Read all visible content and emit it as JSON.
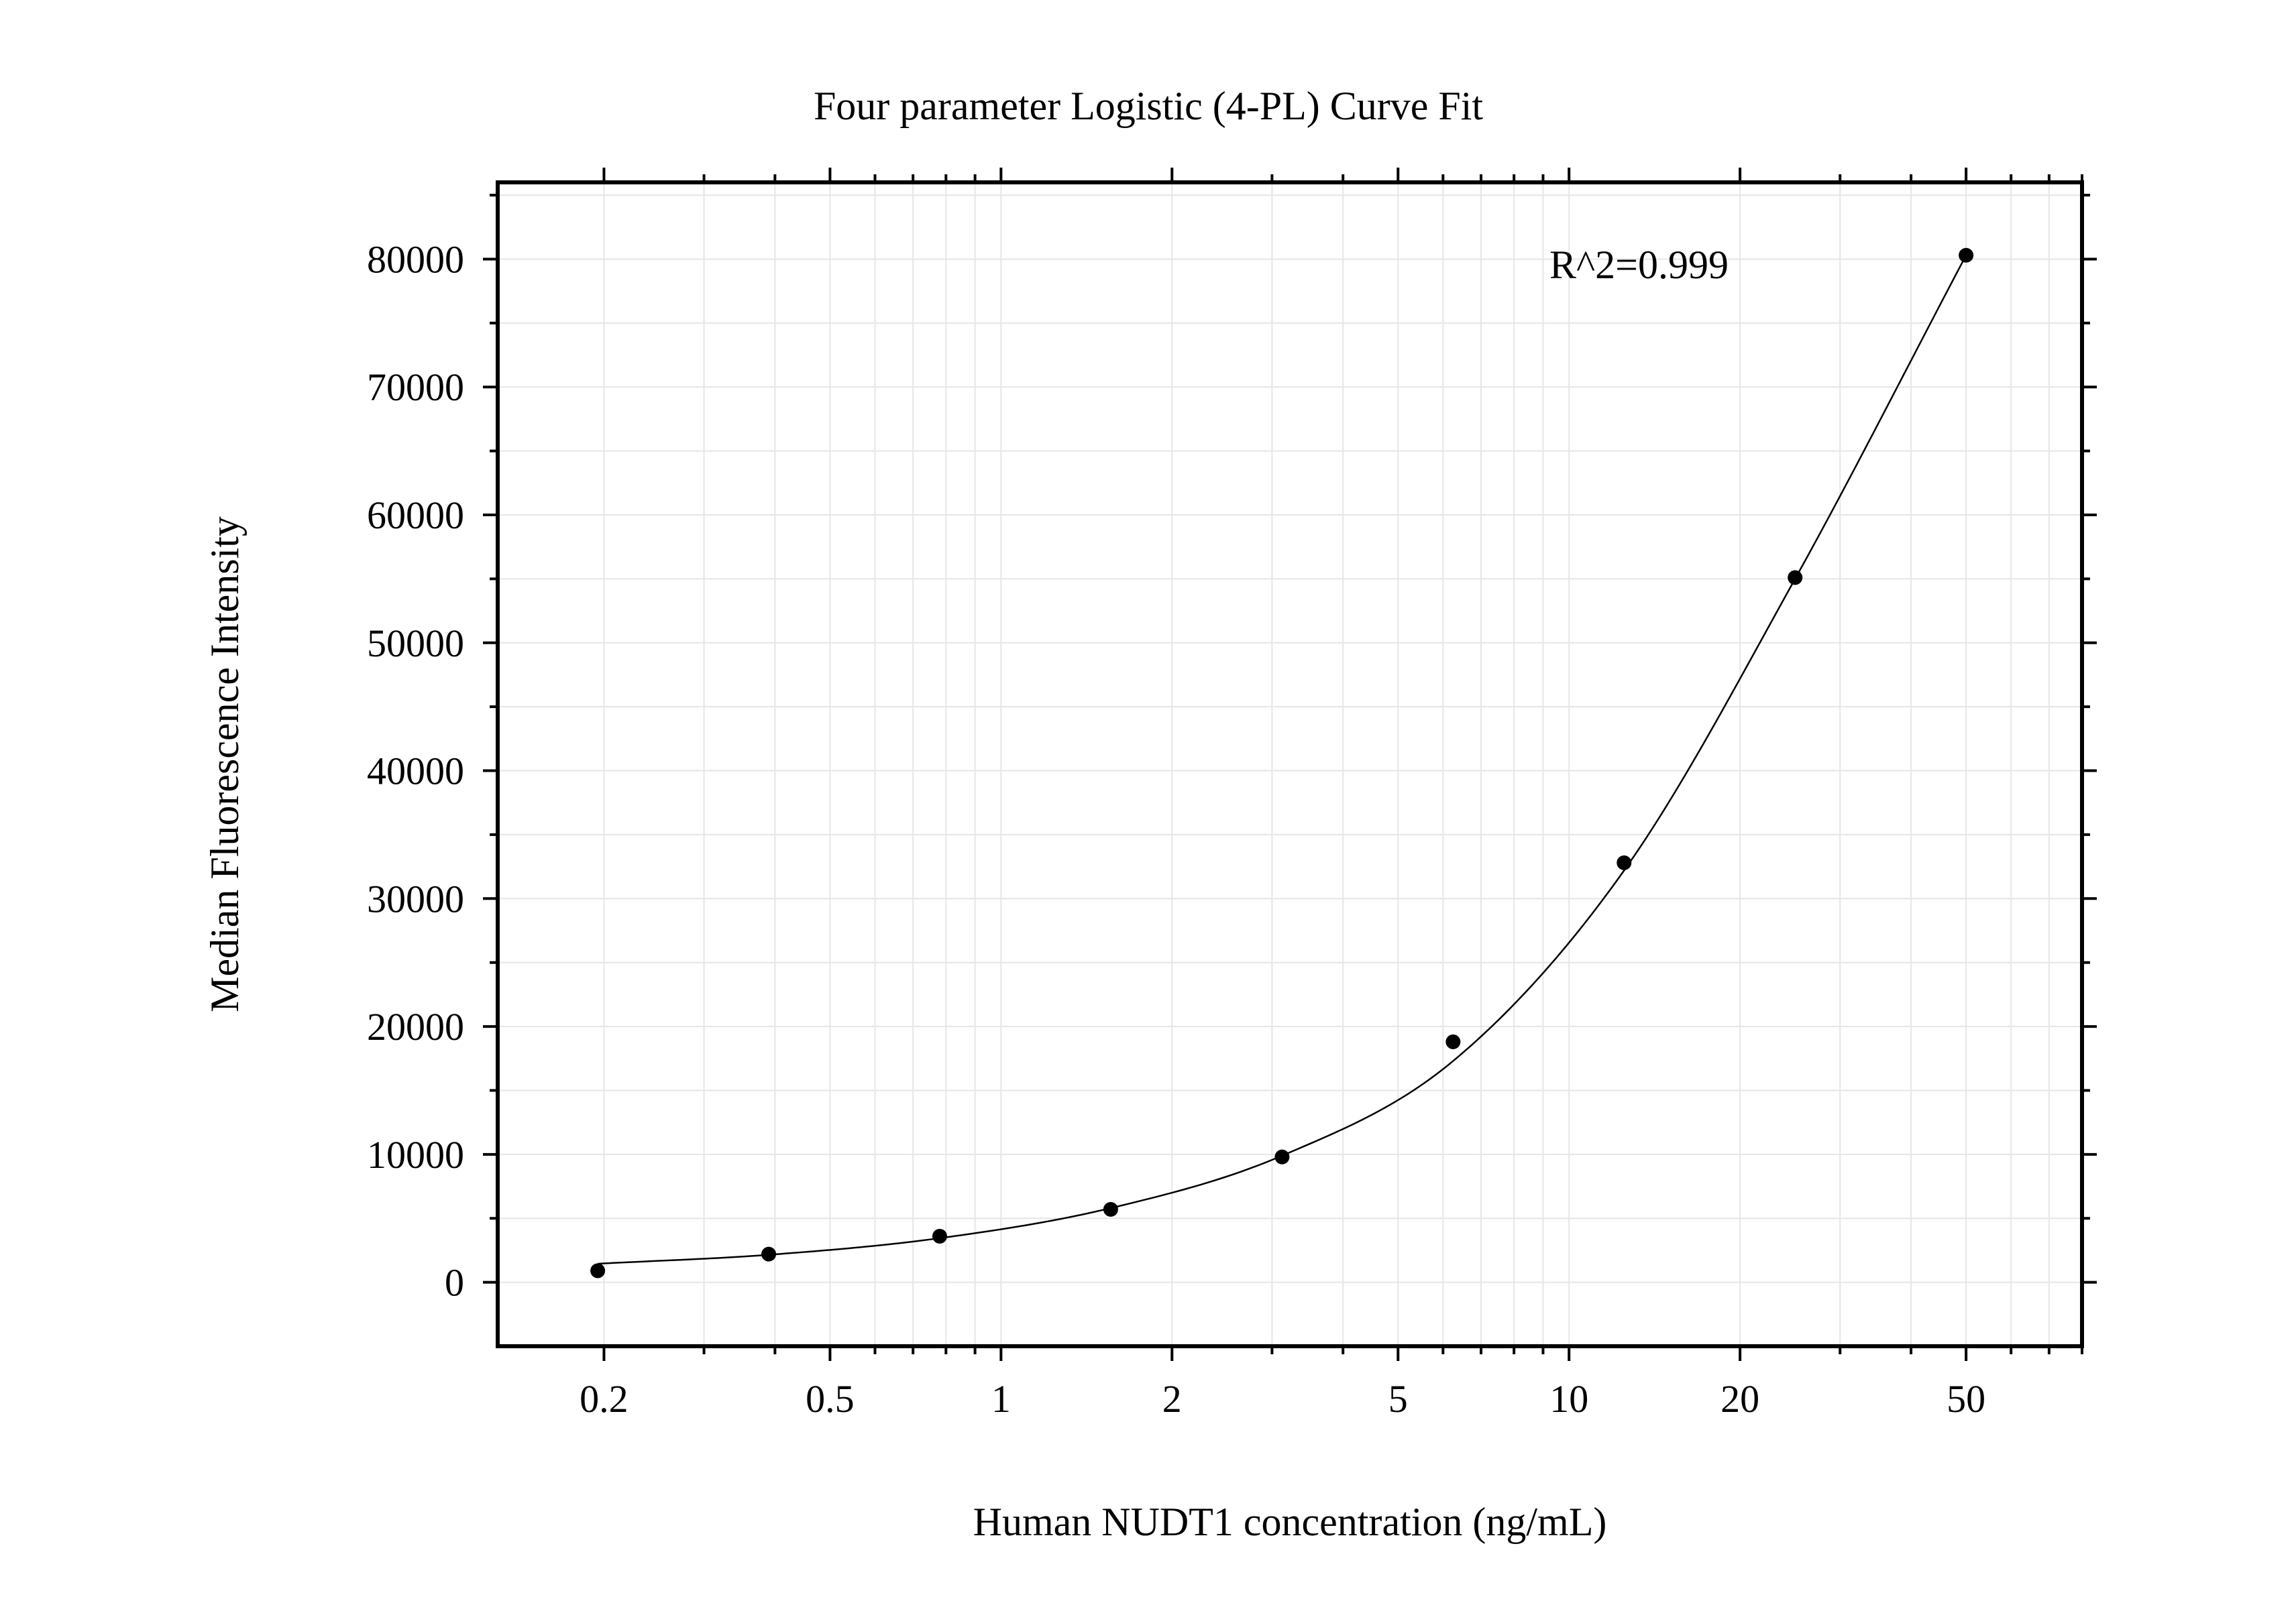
{
  "chart_data": {
    "type": "scatter",
    "title": "Four parameter Logistic (4-PL) Curve Fit",
    "xlabel": "Human NUDT1 concentration (ng/mL)",
    "ylabel": "Median Fluorescence Intensity",
    "x_scale": "log",
    "xlim": [
      0.13,
      80
    ],
    "ylim": [
      -5000,
      86000
    ],
    "x_ticks": [
      0.2,
      0.5,
      1,
      2,
      5,
      10,
      20,
      50
    ],
    "x_tick_labels": [
      "0.2",
      "0.5",
      "1",
      "2",
      "5",
      "10",
      "20",
      "50"
    ],
    "y_ticks": [
      0,
      10000,
      20000,
      30000,
      40000,
      50000,
      60000,
      70000,
      80000
    ],
    "y_tick_labels": [
      "0",
      "10000",
      "20000",
      "30000",
      "40000",
      "50000",
      "60000",
      "70000",
      "80000"
    ],
    "grid": true,
    "annotation": "R^2=0.999",
    "series": [
      {
        "kind": "points",
        "x": [
          0.195,
          0.39,
          0.78,
          1.56,
          3.125,
          6.25,
          12.5,
          25,
          50
        ],
        "y": [
          900,
          2200,
          3600,
          5700,
          9800,
          18800,
          32800,
          55100,
          80300
        ]
      },
      {
        "kind": "fit-curve",
        "x_range": [
          0.195,
          50
        ],
        "fit_points": {
          "x": [
            0.195,
            0.39,
            0.78,
            1.56,
            3.125,
            6.25,
            12.5,
            25,
            50
          ],
          "y": [
            1450,
            2150,
            3450,
            5800,
            9900,
            17300,
            32200,
            55000,
            80300
          ]
        }
      }
    ],
    "colors": {
      "points": "#000000",
      "curve": "#000000",
      "grid": "#e6e6e6",
      "frame": "#000000"
    }
  }
}
